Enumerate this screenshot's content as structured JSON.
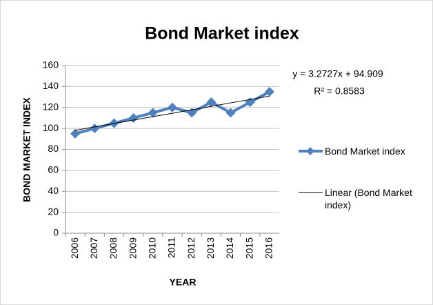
{
  "chart_data": {
    "type": "line",
    "title": "Bond Market index",
    "x_label": "YEAR",
    "y_label": "BOND MARKET INDEX",
    "categories": [
      "2006",
      "2007",
      "2008",
      "2009",
      "2010",
      "2011",
      "2012",
      "2013",
      "2014",
      "2015",
      "2016"
    ],
    "series": [
      {
        "name": "Bond Market index",
        "color": "#4f81bd",
        "values": [
          95,
          100,
          105,
          110,
          115,
          120,
          115,
          125,
          115,
          125,
          135
        ]
      },
      {
        "name": "Linear (Bond Market index)",
        "color": "#000000",
        "values": [
          98.2,
          101.5,
          104.7,
          108.0,
          111.3,
          114.5,
          117.8,
          121.1,
          124.4,
          127.6,
          130.9
        ]
      }
    ],
    "annotations": [
      "y = 3.2727x + 94.909",
      "R² = 0.8583"
    ],
    "ylim": [
      0,
      160
    ],
    "yticks": [
      0,
      20,
      40,
      60,
      80,
      100,
      120,
      140,
      160
    ],
    "grid": true,
    "legend": "right"
  }
}
